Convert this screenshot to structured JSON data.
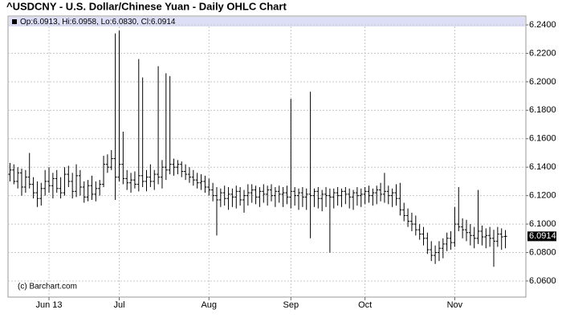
{
  "chart_data": {
    "type": "ohlc",
    "title": "^USDCNY - U.S. Dollar/Chinese Yuan - Daily OHLC Chart",
    "info": "Op:6.0913, Hi:6.0958, Lo:6.0830, Cl:6.0914",
    "watermark": "(c) Barchart.com",
    "color": "#000000",
    "grid": true,
    "categories": [
      null,
      null,
      null,
      null,
      null,
      null,
      null,
      null,
      null,
      null,
      "Jun 13",
      null,
      null,
      null,
      null,
      null,
      null,
      null,
      null,
      null,
      null,
      null,
      null,
      null,
      null,
      null,
      null,
      null,
      "Jul",
      null,
      null,
      null,
      null,
      null,
      null,
      null,
      null,
      null,
      null,
      null,
      null,
      null,
      null,
      null,
      null,
      null,
      null,
      null,
      null,
      null,
      null,
      "Aug",
      null,
      null,
      null,
      null,
      null,
      null,
      null,
      null,
      null,
      null,
      null,
      null,
      null,
      null,
      null,
      null,
      null,
      null,
      null,
      null,
      "Sep",
      null,
      null,
      null,
      null,
      null,
      null,
      null,
      null,
      null,
      null,
      null,
      null,
      null,
      null,
      null,
      null,
      null,
      null,
      "Oct",
      null,
      null,
      null,
      null,
      null,
      null,
      null,
      null,
      null,
      null,
      null,
      null,
      null,
      null,
      null,
      null,
      null,
      null,
      null,
      null,
      null,
      null,
      "Nov",
      null,
      null,
      null,
      null,
      null,
      null,
      null,
      null,
      null,
      null,
      null,
      null,
      null
    ],
    "open": [
      6.135,
      6.138,
      6.13,
      6.136,
      6.126,
      6.133,
      6.128,
      6.122,
      6.118,
      6.125,
      6.13,
      6.127,
      6.132,
      6.125,
      6.122,
      6.135,
      6.13,
      6.123,
      6.134,
      6.126,
      6.119,
      6.127,
      6.121,
      6.125,
      6.128,
      6.142,
      6.14,
      6.146,
      6.133,
      6.142,
      6.132,
      6.129,
      6.131,
      6.128,
      6.134,
      6.13,
      6.133,
      6.13,
      6.135,
      6.133,
      6.14,
      6.138,
      6.142,
      6.14,
      6.142,
      6.137,
      6.135,
      6.133,
      6.131,
      6.129,
      6.13,
      6.126,
      6.124,
      6.12,
      6.117,
      6.122,
      6.118,
      6.121,
      6.119,
      6.123,
      6.117,
      6.12,
      6.122,
      6.124,
      6.119,
      6.123,
      6.121,
      6.124,
      6.12,
      6.123,
      6.121,
      6.122,
      6.119,
      6.123,
      6.12,
      6.122,
      6.119,
      6.121,
      6.12,
      6.123,
      6.118,
      6.121,
      6.12,
      6.119,
      6.122,
      6.12,
      6.123,
      6.121,
      6.119,
      6.122,
      6.12,
      6.121,
      6.123,
      6.12,
      6.122,
      6.124,
      6.121,
      6.123,
      6.12,
      6.122,
      6.118,
      6.11,
      6.106,
      6.102,
      6.1,
      6.096,
      6.093,
      6.09,
      6.082,
      6.078,
      6.08,
      6.083,
      6.086,
      6.09,
      6.087,
      6.1,
      6.098,
      6.096,
      6.094,
      6.092,
      6.09,
      6.095,
      6.091,
      6.092,
      6.09,
      6.088,
      6.093,
      6.0913
    ],
    "high": [
      6.143,
      6.142,
      6.14,
      6.139,
      6.138,
      6.15,
      6.133,
      6.13,
      6.129,
      6.138,
      6.14,
      6.136,
      6.138,
      6.133,
      6.14,
      6.141,
      6.136,
      6.142,
      6.138,
      6.13,
      6.131,
      6.134,
      6.13,
      6.131,
      6.148,
      6.149,
      6.152,
      6.234,
      6.236,
      6.165,
      6.138,
      6.136,
      6.137,
      6.216,
      6.203,
      6.138,
      6.142,
      6.138,
      6.211,
      6.145,
      6.206,
      6.204,
      6.146,
      6.145,
      6.144,
      6.142,
      6.14,
      6.138,
      6.136,
      6.135,
      6.134,
      6.132,
      6.129,
      6.126,
      6.125,
      6.127,
      6.126,
      6.125,
      6.127,
      6.126,
      6.124,
      6.128,
      6.128,
      6.127,
      6.126,
      6.128,
      6.127,
      6.128,
      6.126,
      6.127,
      6.126,
      6.127,
      6.188,
      6.126,
      6.125,
      6.126,
      6.125,
      6.193,
      6.125,
      6.126,
      6.124,
      6.126,
      6.125,
      6.125,
      6.126,
      6.125,
      6.126,
      6.125,
      6.124,
      6.126,
      6.125,
      6.126,
      6.127,
      6.125,
      6.127,
      6.129,
      6.136,
      6.127,
      6.125,
      6.128,
      6.129,
      6.115,
      6.111,
      6.108,
      6.106,
      6.1,
      6.098,
      6.094,
      6.088,
      6.085,
      6.088,
      6.09,
      6.094,
      6.095,
      6.112,
      6.126,
      6.104,
      6.103,
      6.1,
      6.098,
      6.124,
      6.099,
      6.097,
      6.098,
      6.096,
      6.098,
      6.097,
      6.0958
    ],
    "low": [
      6.13,
      6.128,
      6.125,
      6.12,
      6.122,
      6.125,
      6.118,
      6.112,
      6.113,
      6.12,
      6.122,
      6.118,
      6.122,
      6.118,
      6.12,
      6.126,
      6.118,
      6.119,
      6.12,
      6.115,
      6.116,
      6.117,
      6.116,
      6.12,
      6.126,
      6.136,
      6.138,
      6.117,
      6.13,
      6.128,
      6.124,
      6.122,
      6.125,
      6.123,
      6.126,
      6.123,
      6.126,
      6.124,
      6.128,
      6.125,
      6.131,
      6.135,
      6.134,
      6.135,
      6.133,
      6.131,
      6.129,
      6.127,
      6.125,
      6.124,
      6.122,
      6.12,
      6.116,
      6.092,
      6.112,
      6.113,
      6.11,
      6.112,
      6.111,
      6.113,
      6.108,
      6.113,
      6.115,
      6.114,
      6.112,
      6.115,
      6.113,
      6.116,
      6.112,
      6.115,
      6.112,
      6.114,
      6.111,
      6.113,
      6.11,
      6.112,
      6.11,
      6.09,
      6.112,
      6.111,
      6.109,
      6.112,
      6.08,
      6.111,
      6.113,
      6.112,
      6.114,
      6.111,
      6.11,
      6.113,
      6.112,
      6.114,
      6.115,
      6.113,
      6.114,
      6.116,
      6.115,
      6.114,
      6.112,
      6.113,
      6.106,
      6.102,
      6.098,
      6.095,
      6.092,
      6.089,
      6.085,
      6.079,
      6.074,
      6.072,
      6.074,
      6.076,
      6.081,
      6.082,
      6.084,
      6.095,
      6.09,
      6.088,
      6.085,
      6.083,
      6.086,
      6.085,
      6.083,
      6.084,
      6.07,
      6.084,
      6.082,
      6.083
    ],
    "close": [
      6.138,
      6.13,
      6.136,
      6.126,
      6.133,
      6.128,
      6.122,
      6.118,
      6.125,
      6.13,
      6.127,
      6.132,
      6.125,
      6.122,
      6.135,
      6.13,
      6.123,
      6.134,
      6.126,
      6.119,
      6.127,
      6.121,
      6.125,
      6.128,
      6.142,
      6.14,
      6.146,
      6.133,
      6.142,
      6.132,
      6.129,
      6.131,
      6.128,
      6.134,
      6.13,
      6.133,
      6.13,
      6.135,
      6.133,
      6.14,
      6.138,
      6.142,
      6.14,
      6.142,
      6.137,
      6.135,
      6.133,
      6.131,
      6.129,
      6.13,
      6.126,
      6.124,
      6.12,
      6.117,
      6.122,
      6.118,
      6.121,
      6.119,
      6.123,
      6.117,
      6.12,
      6.122,
      6.124,
      6.119,
      6.123,
      6.121,
      6.124,
      6.12,
      6.123,
      6.121,
      6.122,
      6.119,
      6.123,
      6.12,
      6.122,
      6.119,
      6.121,
      6.12,
      6.123,
      6.118,
      6.121,
      6.12,
      6.119,
      6.122,
      6.12,
      6.123,
      6.121,
      6.119,
      6.122,
      6.12,
      6.121,
      6.123,
      6.12,
      6.122,
      6.124,
      6.121,
      6.123,
      6.12,
      6.122,
      6.118,
      6.11,
      6.106,
      6.102,
      6.1,
      6.096,
      6.093,
      6.09,
      6.082,
      6.078,
      6.08,
      6.083,
      6.086,
      6.09,
      6.087,
      6.1,
      6.098,
      6.096,
      6.094,
      6.092,
      6.09,
      6.095,
      6.091,
      6.092,
      6.09,
      6.088,
      6.093,
      6.091,
      6.0914
    ],
    "ylim": [
      6.0487,
      6.2462
    ],
    "yticks": [
      {
        "value": 6.06,
        "label": "6.0600"
      },
      {
        "value": 6.08,
        "label": "6.0800"
      },
      {
        "value": 6.1,
        "label": "6.1000"
      },
      {
        "value": 6.12,
        "label": "6.1200"
      },
      {
        "value": 6.14,
        "label": "6.1400"
      },
      {
        "value": 6.16,
        "label": "6.1600"
      },
      {
        "value": 6.18,
        "label": "6.1800"
      },
      {
        "value": 6.2,
        "label": "6.2000"
      },
      {
        "value": 6.22,
        "label": "6.2200"
      },
      {
        "value": 6.24,
        "label": "6.2400"
      }
    ]
  }
}
